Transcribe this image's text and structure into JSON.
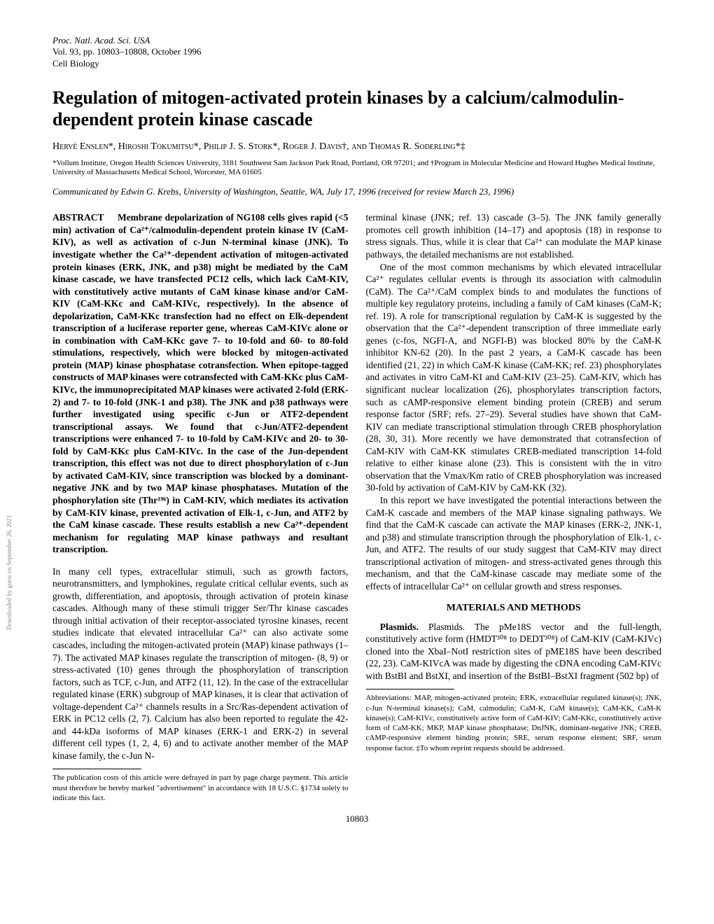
{
  "journal": {
    "line1": "Proc. Natl. Acad. Sci. USA",
    "line2": "Vol. 93, pp. 10803–10808, October 1996",
    "line3": "Cell Biology"
  },
  "title": "Regulation of mitogen-activated protein kinases by a calcium/calmodulin-dependent protein kinase cascade",
  "authors": "Hervé Enslen*, Hiroshi Tokumitsu*, Philip J. S. Stork*, Roger J. Davis†, and Thomas R. Soderling*‡",
  "affiliations": "*Vollum Institute, Oregon Health Sciences University, 3181 Southwest Sam Jackson Park Road, Portland, OR 97201; and †Program in Molecular Medicine and Howard Hughes Medical Institute, University of Massachusetts Medical School, Worcester, MA 01605",
  "communicated": "Communicated by Edwin G. Krebs, University of Washington, Seattle, WA, July 17, 1996 (received for review March 23, 1996)",
  "abstract_label": "ABSTRACT",
  "abstract": "Membrane depolarization of NG108 cells gives rapid (<5 min) activation of Ca²⁺/calmodulin-dependent protein kinase IV (CaM-KIV), as well as activation of c-Jun N-terminal kinase (JNK). To investigate whether the Ca²⁺-dependent activation of mitogen-activated protein kinases (ERK, JNK, and p38) might be mediated by the CaM kinase cascade, we have transfected PC12 cells, which lack CaM-KIV, with constitutively active mutants of CaM kinase kinase and/or CaM-KIV (CaM-KKc and CaM-KIVc, respectively). In the absence of depolarization, CaM-KKc transfection had no effect on Elk-dependent transcription of a luciferase reporter gene, whereas CaM-KIVc alone or in combination with CaM-KKc gave 7- to 10-fold and 60- to 80-fold stimulations, respectively, which were blocked by mitogen-activated protein (MAP) kinase phosphatase cotransfection. When epitope-tagged constructs of MAP kinases were cotransfected with CaM-KKc plus CaM-KIVc, the immunoprecipitated MAP kinases were activated 2-fold (ERK-2) and 7- to 10-fold (JNK-1 and p38). The JNK and p38 pathways were further investigated using specific c-Jun or ATF2-dependent transcriptional assays. We found that c-Jun/ATF2-dependent transcriptions were enhanced 7- to 10-fold by CaM-KIVc and 20- to 30-fold by CaM-KKc plus CaM-KIVc. In the case of the Jun-dependent transcription, this effect was not due to direct phosphorylation of c-Jun by activated CaM-KIV, since transcription was blocked by a dominant-negative JNK and by two MAP kinase phosphatases. Mutation of the phosphorylation site (Thr¹⁹⁶) in CaM-KIV, which mediates its activation by CaM-KIV kinase, prevented activation of Elk-1, c-Jun, and ATF2 by the CaM kinase cascade. These results establish a new Ca²⁺-dependent mechanism for regulating MAP kinase pathways and resultant transcription.",
  "intro1": "In many cell types, extracellular stimuli, such as growth factors, neurotransmitters, and lymphokines, regulate critical cellular events, such as growth, differentiation, and apoptosis, through activation of protein kinase cascades. Although many of these stimuli trigger Ser/Thr kinase cascades through initial activation of their receptor-associated tyrosine kinases, recent studies indicate that elevated intracellular Ca²⁺ can also activate some cascades, including the mitogen-activated protein (MAP) kinase pathways (1–7). The activated MAP kinases regulate the transcription of mitogen- (8, 9) or stress-activated (10) genes through the phosphorylation of transcription factors, such as TCF, c-Jun, and ATF2 (11, 12). In the case of the extracellular regulated kinase (ERK) subgroup of MAP kinases, it is clear that activation of voltage-dependent Ca²⁺ channels results in a Src/Ras-dependent activation of ERK in PC12 cells (2, 7). Calcium has also been reported to regulate the 42- and 44-kDa isoforms of MAP kinases (ERK-1 and ERK-2) in several different cell types (1, 2, 4, 6) and to activate another member of the MAP kinase family, the c-Jun N-",
  "col2_p1": "terminal kinase (JNK; ref. 13) cascade (3–5). The JNK family generally promotes cell growth inhibition (14–17) and apoptosis (18) in response to stress signals. Thus, while it is clear that Ca²⁺ can modulate the MAP kinase pathways, the detailed mechanisms are not established.",
  "col2_p2": "One of the most common mechanisms by which elevated intracellular Ca²⁺ regulates cellular events is through its association with calmodulin (CaM). The Ca²⁺/CaM complex binds to and modulates the functions of multiple key regulatory proteins, including a family of CaM kinases (CaM-K; ref. 19). A role for transcriptional regulation by CaM-K is suggested by the observation that the Ca²⁺-dependent transcription of three immediate early genes (c-fos, NGFI-A, and NGFI-B) was blocked 80% by the CaM-K inhibitor KN-62 (20). In the past 2 years, a CaM-K cascade has been identified (21, 22) in which CaM-K kinase (CaM-KK; ref. 23) phosphorylates and activates in vitro CaM-KI and CaM-KIV (23–25). CaM-KIV, which has significant nuclear localization (26), phosphorylates transcription factors, such as cAMP-responsive element binding protein (CREB) and serum response factor (SRF; refs. 27–29). Several studies have shown that CaM-KIV can mediate transcriptional stimulation through CREB phosphorylation (28, 30, 31). More recently we have demonstrated that cotransfection of CaM-KIV with CaM-KK stimulates CREB-mediated transcription 14-fold relative to either kinase alone (23). This is consistent with the in vitro observation that the Vmax/Km ratio of CREB phosphorylation was increased 30-fold by activation of CaM-KIV by CaM-KK (32).",
  "col2_p3": "In this report we have investigated the potential interactions between the CaM-K cascade and members of the MAP kinase signaling pathways. We find that the CaM-K cascade can activate the MAP kinases (ERK-2, JNK-1, and p38) and stimulate transcription through the phosphorylation of Elk-1, c-Jun, and ATF2. The results of our study suggest that CaM-KIV may direct transcriptional activation of mitogen- and stress-activated genes through this mechanism, and that the CaM-kinase cascade may mediate some of the effects of intracellular Ca²⁺ on cellular growth and stress responses.",
  "methods_heading": "MATERIALS AND METHODS",
  "methods_p1": "Plasmids. The pMe18S vector and the full-length, constitutively active form (HMDT³⁰⁸ to DEDT³⁰⁸) of CaM-KIV (CaM-KIVc) cloned into the XbaI–NotI restriction sites of pME18S have been described (22, 23). CaM-KIVcA was made by digesting the cDNA encoding CaM-KIVc with BstBI and BstXI, and insertion of the BstBI–BstXI fragment (502 bp) of",
  "left_footnote": "The publication costs of this article were defrayed in part by page charge payment. This article must therefore be hereby marked \"advertisement\" in accordance with 18 U.S.C. §1734 solely to indicate this fact.",
  "right_footnote": "Abbreviations: MAP, mitogen-activated protein; ERK, extracellular regulated kinase(s); JNK, c-Jun N-terminal kinase(s); CaM, calmodulin; CaM-K, CaM kinase(s); CaM-KK, CaM-K kinase(s); CaM-KIVc, constitutively active form of CaM-KIV; CaM-KKc, constitutively active form of CaM-KK; MKP, MAP kinase phosphatase; DnJNK, dominant-negative JNK; CREB, cAMP-responsive element binding protein; SRE, serum response element; SRF, serum response factor. ‡To whom reprint requests should be addressed.",
  "page_number": "10803",
  "side_text": "Downloaded by guest on September 26, 2021"
}
